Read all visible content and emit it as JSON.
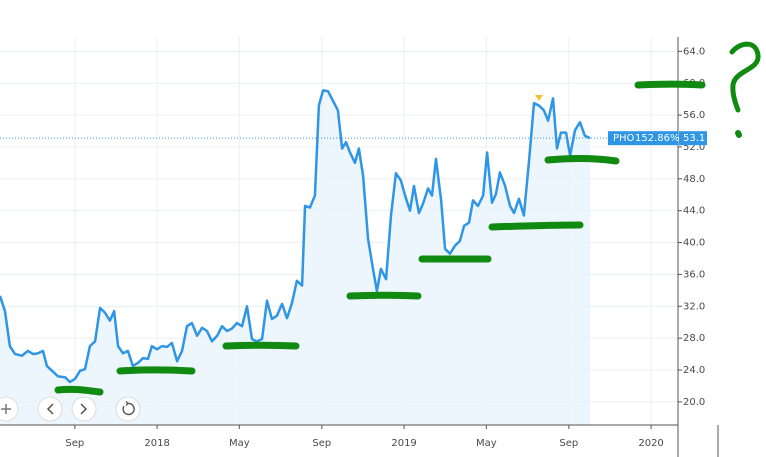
{
  "chart_data": {
    "type": "line",
    "x": [
      2017.364,
      2017.384,
      2017.404,
      2017.425,
      2017.453,
      2017.477,
      2017.498,
      2017.518,
      2017.538,
      2017.554,
      2017.575,
      2017.599,
      2017.627,
      2017.647,
      2017.668,
      2017.688,
      2017.708,
      2017.728,
      2017.749,
      2017.769,
      2017.789,
      2017.809,
      2017.826,
      2017.842,
      2017.862,
      2017.882,
      2017.902,
      2017.923,
      2017.943,
      2017.963,
      2017.979,
      2018.0,
      2018.02,
      2018.04,
      2018.06,
      2018.081,
      2018.101,
      2018.121,
      2018.141,
      2018.162,
      2018.182,
      2018.202,
      2018.222,
      2018.243,
      2018.263,
      2018.283,
      2018.303,
      2018.323,
      2018.344,
      2018.364,
      2018.384,
      2018.404,
      2018.425,
      2018.445,
      2018.465,
      2018.485,
      2018.506,
      2018.526,
      2018.546,
      2018.566,
      2018.587,
      2018.599,
      2018.619,
      2018.639,
      2018.655,
      2018.672,
      2018.692,
      2018.712,
      2018.732,
      2018.749,
      2018.765,
      2018.781,
      2018.801,
      2018.817,
      2018.834,
      2018.854,
      2018.874,
      2018.89,
      2018.906,
      2018.927,
      2018.947,
      2018.967,
      2018.987,
      2019.004,
      2019.024,
      2019.04,
      2019.06,
      2019.077,
      2019.097,
      2019.113,
      2019.129,
      2019.15,
      2019.166,
      2019.186,
      2019.206,
      2019.226,
      2019.243,
      2019.263,
      2019.279,
      2019.299,
      2019.32,
      2019.336,
      2019.356,
      2019.372,
      2019.388,
      2019.409,
      2019.429,
      2019.445,
      2019.465,
      2019.485,
      2019.506,
      2019.526,
      2019.546,
      2019.566,
      2019.583,
      2019.603,
      2019.619,
      2019.635,
      2019.656,
      2019.672,
      2019.692,
      2019.712,
      2019.732,
      2019.753
    ],
    "series": [
      {
        "name": "PHO",
        "color": "#2f96e6",
        "values": [
          33.3,
          31.4,
          27.0,
          26.0,
          25.8,
          26.4,
          26.0,
          26.1,
          26.4,
          24.5,
          23.9,
          23.2,
          23.1,
          22.5,
          22.9,
          23.9,
          24.1,
          27.0,
          27.6,
          31.8,
          31.2,
          30.2,
          31.4,
          27.0,
          26.1,
          26.4,
          24.5,
          24.9,
          25.5,
          25.4,
          27.0,
          26.6,
          27.0,
          26.9,
          27.4,
          25.1,
          26.4,
          29.5,
          29.9,
          28.3,
          29.3,
          28.9,
          27.6,
          28.3,
          29.5,
          28.9,
          29.2,
          29.9,
          29.5,
          32.0,
          27.9,
          27.6,
          27.9,
          32.7,
          30.4,
          30.8,
          32.3,
          30.5,
          32.4,
          35.2,
          34.6,
          44.6,
          44.4,
          45.9,
          57.2,
          59.1,
          59.0,
          57.8,
          56.6,
          51.8,
          52.6,
          51.3,
          50.0,
          51.8,
          48.4,
          40.5,
          36.7,
          33.9,
          36.7,
          35.4,
          43.4,
          48.7,
          47.8,
          45.9,
          44.0,
          47.1,
          43.7,
          44.9,
          46.8,
          45.9,
          50.5,
          45.3,
          39.2,
          38.6,
          39.6,
          40.2,
          42.1,
          42.5,
          45.3,
          44.6,
          45.9,
          51.3,
          45.0,
          46.1,
          48.8,
          47.1,
          44.6,
          43.7,
          45.5,
          43.4,
          50.3,
          57.5,
          57.2,
          56.6,
          55.3,
          58.1,
          51.8,
          53.8,
          53.8,
          50.9,
          54.1,
          55.1,
          53.4,
          53.1
        ]
      }
    ],
    "change_label": "152.86%",
    "xlim": [
      2017.364,
      2020.109
    ],
    "xticks": [
      {
        "value": 2017.667,
        "label": "Sep"
      },
      2018,
      {
        "value": 2018.333,
        "label": "May"
      },
      {
        "value": 2018.667,
        "label": "Sep"
      },
      2019,
      {
        "value": 2019.333,
        "label": "May"
      },
      {
        "value": 2019.667,
        "label": "Sep"
      },
      2020
    ],
    "ylim": [
      17.1,
      65.8
    ],
    "yticks": [
      {
        "value": 20,
        "label": "20.0"
      },
      {
        "value": 24,
        "label": "24.0"
      },
      {
        "value": 28,
        "label": "28.0"
      },
      {
        "value": 32,
        "label": "32.0"
      },
      {
        "value": 36,
        "label": "36.0"
      },
      {
        "value": 40,
        "label": "40.0"
      },
      {
        "value": 44,
        "label": "44.0"
      },
      {
        "value": 48,
        "label": "48.0"
      },
      {
        "value": 52,
        "label": "52.0"
      },
      {
        "value": 56,
        "label": "56.0"
      },
      {
        "value": 60,
        "label": "60.0"
      },
      {
        "value": 64,
        "label": "64.0"
      }
    ],
    "grid": true,
    "area": true
  }
}
